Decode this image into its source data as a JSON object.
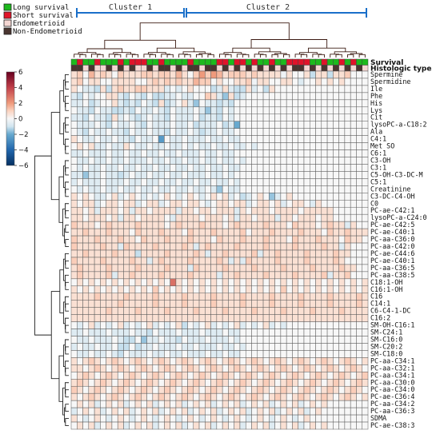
{
  "legend": {
    "items": [
      {
        "label": "Long survival",
        "color": "#1db91d"
      },
      {
        "label": "Short survival",
        "color": "#e0142a"
      },
      {
        "label": "Endometrioid",
        "color": "#f4d6d2"
      },
      {
        "label": "Non-Endometrioid",
        "color": "#4a3530"
      }
    ]
  },
  "clusters": [
    {
      "label": "Cluster 1"
    },
    {
      "label": "Cluster 2"
    }
  ],
  "annotation_rows": {
    "survival_label": "Survival",
    "histologic_label": "Histologic type"
  },
  "colors": {
    "cluster_bar": "#1a6fc9",
    "dendrogram": "#3b1a12",
    "grid": "#5a5a5a",
    "scale_low": "#053061",
    "scale_mid": "#f7f7f7",
    "scale_high": "#67001f"
  },
  "chart_data": {
    "type": "heatmap",
    "title": "",
    "colorbar": {
      "ticks": [
        "6",
        "4",
        "2",
        "0",
        "−2",
        "−4",
        "−6"
      ],
      "range": [
        -6,
        6
      ]
    },
    "columns": 51,
    "survival": "LSLLSLLLSLSSSLLSLLLLSLLLLSSLSSLSLLSLLSSSSLLSLLSLSLL",
    "histology": "NNENEENENENEENENNENENNENNENENENENENENENNENENENENENE",
    "rows": [
      "Spermine",
      "Spermidine",
      "Ile",
      "Phe",
      "His",
      "Lys",
      "Cit",
      "lysoPC-a-C18:2",
      "Ala",
      "C4:1",
      "Met SO",
      "C6:1",
      "C3-OH",
      "C3:1",
      "C5-OH-C3-DC-M",
      "C5:1",
      "Creatinine",
      "C3-DC-C4-OH",
      "C0",
      "PC-ae-C42:1",
      "lysoPC-a-C24:0",
      "PC-ae-C42:5",
      "PC-ae-C40:1",
      "PC-aa-C36:0",
      "PC-aa-C42:0",
      "PC-ae-C44:6",
      "PC-ae-C40:1",
      "PC-aa-C36:5",
      "PC-aa-C38:5",
      "C18:1-OH",
      "C16:1-OH",
      "C16",
      "C14:1",
      "C6-C4-1-DC",
      "C16:2",
      "SM-OH-C16:1",
      "SM-C24:1",
      "SM-C16:0",
      "SM-C20:2",
      "SM-C18:0",
      "PC-aa-C34:1",
      "PC-aa-C32:1",
      "PC-aa-C34:1",
      "PC-aa-C30:0",
      "PC-aa-C34:0",
      "PC-ae-C36:4",
      "PC-aa-C34:2",
      "PC-aa-C36:3",
      "SDMA",
      "PC-ae-C38:3"
    ],
    "values": [
      "120312102111221221310242431222121111-01001-211-2112",
      "1201100111100121212113220100112-01100110-10010101-",
      "10-1-1-21-2121122111-10-101000-2-11-1-2-21-10-21--",
      "-1-20-10--11-1-20-1-20-2-2-1-10-1-10--21-1-31-2-1-",
      "-1-10-2-10--1-1-2-1-20-1-21-2-1--1-1-30-1-1-2-1-2-",
      "0-1-1-20-1-1-2-2-1-20-1-10-1-20-1-1-10-1-3-1-20-1-",
      "-1-1-20-1-1-21-10-1-2-10-1-1-20-1-1-10-2-1-1-20-1-",
      "0-1-1-10-1-20-1-10-1-20-1-1-10-1-10-2-1-1-10-2-1-4",
      "0-1-20-1-10-1-1-20-1-10-1-1-20-1-10-1-2-1-10-1-1-",
      "10-1-10-1-10-1-1-20-1-10-50-1-10-1-1-10-1-10-1-10-",
      "0101-1-10-1-110-1-10-1-10-1-10-10-1-10-1-10-1-10-1",
      "-1-10-1-1-10-1-10-1-10-1-10-1-10-1-1-10-1-10-1-10-",
      "0-1-10-1-10-1-10-1-1-10-1-10-1-10-1-10-1-10-1-10-1",
      "0-10-1-10-1-10-1-10-1-10-1-10-1-10-1-10-1-10-1-10-",
      "-1-1-3-1-10-1-1-2-10-1-10-1-10-1-10-1-1-10-1-10-1-",
      "-10-1-1-10-1-1-10-1-10-1-10-1-10-1-10-1-10-1-10-1-",
      "0-10-1-10-1-10-1-10-1-10-1-10-1-10-1-10-1-30-1-10-",
      "1010-1-101-1010-10-1010-1010-10101-10-2-1010-3-101",
      "1011-1011011-1011-10110110-1011011-101101-10110-11",
      "1101-111101-11101111-1110110111-11011101111011111-",
      "11011101-111011110-11111011101-1110111-1110111011-",
      "21110121111211110121112111012111121110211101211-11",
      "112111211102111211102111211112011121111211102112111",
      "21112111211021112111211102111211121110211121110211-",
      "21111211-1211112111121-1121111211112111121111211-11",
      "11211112111-211112111121-111211112-1112111121111211",
      "2111121111211-11211112111121-11-121111211112111121-",
      "12111121111211112111-12111121111211112111121111211-",
      "1211112-111211112111121111-1112111121111211112-1112",
      "0101010101010101061010101010101010101010101010101010",
      "1010101010101020101010101010101010102010101010101010",
      "1111211112111121111211112111121111211112111121111211",
      "1111111121111121111211112111121111211112111121111211",
      "1111112111121111211112111121111211112111121111211112",
      "1111111111111111111111111111111111111111111111111112",
      "0-101-10-101-10-101-10-101-20-101-10-101-10-101-10-1",
      "-1-10-1-1-10-1-1-10-1-1-20-1-1-10-1-1-10-1-1-10-1-1",
      "0-1-10-1-1-10-1-2-20-3-1-10-1-1-20-1-1-10-1-1-10-1-",
      "-10-1-10-1-10-2-20-2-1-10-1-1-10-1-10-1-1-10-1-10-1",
      "0-1-10-1-10-1-20-1-1-10-1-10-1-10-1-1-10-1-10-1-10-",
      "1012101210121012101210121012101210121012101210121012",
      "1101210121012101210121012101210121012101210121012101",
      "0121012101210121012101210121012101210121012101210121",
      "1210121012101210121012101210121012101210121012101210",
      "2101210121012101210121012101210121012101210121012101",
      "1012101210121012101210121012101210121012101210121012",
      "0101-10101-10101-10101-10101-10101-10101-10101-10101",
      "-10101-10101-10101-10101-10101-10101-10101-10101-101",
      "10-1010-1010-1010-1010-1010-1010-1010-1010-1010-101",
      "0101-10101-10101-10101-10101-10101-10101-10101-10101"
    ]
  }
}
